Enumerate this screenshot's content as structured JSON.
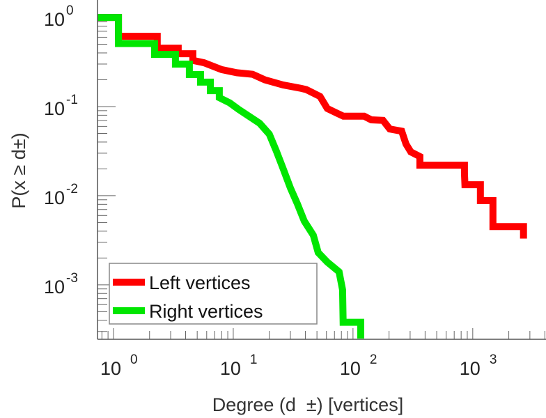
{
  "chart_data": {
    "type": "line",
    "title": "",
    "xlabel": "Degree (d  ±) [vertices]",
    "ylabel": "P(x ≥ d±)",
    "xscale": "log",
    "yscale": "log",
    "xlim": [
      0.735,
      4090
    ],
    "ylim": [
      0.000245,
      1.57
    ],
    "grid": false,
    "legend_position": "bottom-left",
    "x_ticks": [
      {
        "base": "10",
        "exp": "0",
        "value": 1
      },
      {
        "base": "10",
        "exp": "1",
        "value": 10
      },
      {
        "base": "10",
        "exp": "2",
        "value": 100
      },
      {
        "base": "10",
        "exp": "3",
        "value": 1000
      }
    ],
    "y_ticks": [
      {
        "base": "10",
        "exp": "0",
        "value": 1
      },
      {
        "base": "10",
        "exp": "-1",
        "value": 0.1
      },
      {
        "base": "10",
        "exp": "-2",
        "value": 0.01
      },
      {
        "base": "10",
        "exp": "-3",
        "value": 0.001
      }
    ],
    "series": [
      {
        "name": "Left vertices",
        "color": "#ff0000",
        "points": [
          [
            0.735,
            1
          ],
          [
            1.1,
            1
          ],
          [
            1.1,
            0.615
          ],
          [
            2.32,
            0.615
          ],
          [
            2.32,
            0.453
          ],
          [
            3.47,
            0.453
          ],
          [
            3.47,
            0.392
          ],
          [
            4.6,
            0.392
          ],
          [
            4.6,
            0.33
          ],
          [
            5.7,
            0.31
          ],
          [
            8.0,
            0.26
          ],
          [
            10.7,
            0.24
          ],
          [
            14.5,
            0.23
          ],
          [
            18.3,
            0.2
          ],
          [
            26,
            0.175
          ],
          [
            37,
            0.16
          ],
          [
            40.8,
            0.155
          ],
          [
            53,
            0.13
          ],
          [
            61,
            0.095
          ],
          [
            72.5,
            0.085
          ],
          [
            83,
            0.078
          ],
          [
            124,
            0.078
          ],
          [
            142,
            0.071
          ],
          [
            178,
            0.07
          ],
          [
            203,
            0.056
          ],
          [
            255,
            0.053
          ],
          [
            277,
            0.038
          ],
          [
            304,
            0.031
          ],
          [
            362,
            0.0275
          ],
          [
            362,
            0.022
          ],
          [
            852,
            0.022
          ],
          [
            852,
            0.018
          ],
          [
            860,
            0.0133
          ],
          [
            1158,
            0.0133
          ],
          [
            1158,
            0.0088
          ],
          [
            1475,
            0.0088
          ],
          [
            1475,
            0.0045
          ],
          [
            2655,
            0.0045
          ],
          [
            2655,
            0.0033
          ]
        ]
      },
      {
        "name": "Right vertices",
        "color": "#00e600",
        "points": [
          [
            0.735,
            1
          ],
          [
            1.1,
            1
          ],
          [
            1.1,
            0.51
          ],
          [
            2.2,
            0.51
          ],
          [
            2.2,
            0.385
          ],
          [
            3.29,
            0.385
          ],
          [
            3.29,
            0.3
          ],
          [
            4.3,
            0.3
          ],
          [
            4.3,
            0.229
          ],
          [
            5.33,
            0.229
          ],
          [
            5.33,
            0.188
          ],
          [
            6.43,
            0.188
          ],
          [
            6.43,
            0.151
          ],
          [
            7.65,
            0.151
          ],
          [
            7.65,
            0.126
          ],
          [
            9.35,
            0.11
          ],
          [
            11.1,
            0.093
          ],
          [
            16.6,
            0.065
          ],
          [
            20,
            0.049
          ],
          [
            22.9,
            0.0317
          ],
          [
            26.2,
            0.0198
          ],
          [
            30,
            0.0122
          ],
          [
            34.3,
            0.0081
          ],
          [
            39.2,
            0.0052
          ],
          [
            46.6,
            0.0036
          ],
          [
            51.2,
            0.0023
          ],
          [
            61,
            0.0018
          ],
          [
            76.5,
            0.0014
          ],
          [
            81.8,
            0.00088
          ],
          [
            82.7,
            0.00038
          ],
          [
            116,
            0.00038
          ],
          [
            116,
            0.00025
          ]
        ]
      }
    ]
  }
}
